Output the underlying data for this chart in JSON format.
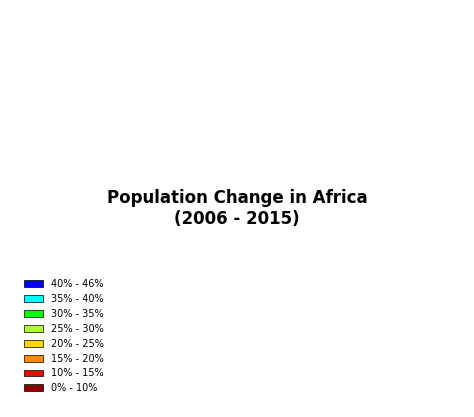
{
  "title_line1": "Population Change in Africa",
  "title_line2": "(2006 - 2015)",
  "legend_labels": [
    "40% - 46%",
    "35% - 40%",
    "30% - 35%",
    "25% - 30%",
    "20% - 25%",
    "15% - 20%",
    "10% - 15%",
    "0% - 10%"
  ],
  "legend_colors": [
    "#0000FF",
    "#00FFFF",
    "#00FF00",
    "#ADFF2F",
    "#FFD700",
    "#FF8C00",
    "#FF0000",
    "#8B0000"
  ],
  "background_color": "#FFFFFF",
  "title_fontsize": 11,
  "legend_fontsize": 7,
  "country_colors": {
    "Morocco": "#FF0000",
    "Algeria": "#FF8C00",
    "Tunisia": "#FF0000",
    "Libya": "#8B0000",
    "Egypt": "#FF8C00",
    "Western Sahara": "#AAAAAA",
    "Mauritania": "#00FF00",
    "Mali": "#00FF00",
    "Niger": "#FF8C00",
    "Chad": "#FF8C00",
    "Sudan": "#FFD700",
    "Eritrea": "#FF0000",
    "Djibouti": "#ADFF2F",
    "Ethiopia": "#ADFF2F",
    "Somalia": "#FFD700",
    "Senegal": "#ADFF2F",
    "Gambia": "#00FF00",
    "Guinea-Bissau": "#00FF00",
    "Guinea": "#00FF00",
    "Sierra Leone": "#FFD700",
    "Liberia": "#FFD700",
    "Ivory Coast": "#FFD700",
    "Burkina Faso": "#FFD700",
    "Ghana": "#FF8C00",
    "Togo": "#FFD700",
    "Benin": "#FFD700",
    "Nigeria": "#00FF00",
    "Cameroon": "#00FF00",
    "Central African Republic": "#00FF00",
    "South Sudan": "#00FF00",
    "Uganda": "#00FF00",
    "Kenya": "#00FF00",
    "Rwanda": "#0000FF",
    "Burundi": "#0000FF",
    "Tanzania": "#00FF00",
    "Democratic Republic of the Congo": "#0000FF",
    "Republic of the Congo": "#00FF00",
    "Gabon": "#00FF00",
    "Equatorial Guinea": "#FF8C00",
    "Sao Tome and Principe": "#00FF00",
    "Angola": "#FF8C00",
    "Zambia": "#00FF00",
    "Malawi": "#00FF00",
    "Mozambique": "#00FF00",
    "Zimbabwe": "#00FF00",
    "Botswana": "#FF8C00",
    "Namibia": "#00FF00",
    "South Africa": "#FF0000",
    "Lesotho": "#FF8C00",
    "Swaziland": "#FF8C00",
    "Madagascar": "#ADFF2F",
    "Comoros": "#00FF00",
    "Seychelles": "#00FF00",
    "Cabo Verde": "#00FF00"
  }
}
